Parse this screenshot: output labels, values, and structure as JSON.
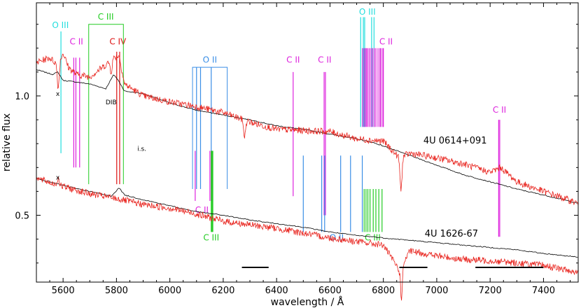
{
  "chart_data": {
    "type": "line",
    "xlabel": "wavelength / Å",
    "ylabel": "relative flux",
    "xlim": [
      5500,
      7530
    ],
    "ylim": [
      0.22,
      1.39
    ],
    "xticks": [
      5600,
      5800,
      6000,
      6200,
      6400,
      6600,
      6800,
      7000,
      7200,
      7400
    ],
    "yticks": [
      0.5,
      1.0
    ],
    "ytick_labels": [
      "0.5",
      "1.0"
    ],
    "grid": false,
    "colors": {
      "data": "#e8221c",
      "model": "#000000",
      "O II": "#3a8ee6",
      "C II": "#dd22dd",
      "C III": "#22cc22",
      "O III": "#22dddd",
      "C IV": "#dd1111"
    },
    "series": [
      {
        "name": "4U 0614+091",
        "kind": "model",
        "x": [
          5500,
          5560,
          5580,
          5600,
          5650,
          5700,
          5760,
          5790,
          5810,
          5830,
          5900,
          6000,
          6100,
          6200,
          6300,
          6400,
          6500,
          6600,
          6700,
          6760,
          6800,
          6900,
          7000,
          7100,
          7200,
          7300,
          7400,
          7530
        ],
        "y": [
          1.11,
          1.09,
          1.1,
          1.065,
          1.058,
          1.05,
          1.03,
          1.09,
          1.06,
          1.02,
          1.01,
          0.97,
          0.94,
          0.92,
          0.9,
          0.875,
          0.86,
          0.84,
          0.82,
          0.805,
          0.79,
          0.75,
          0.71,
          0.67,
          0.64,
          0.61,
          0.585,
          0.55
        ]
      },
      {
        "name": "4U 0614+091",
        "kind": "observed",
        "x": [
          5500,
          5550,
          5580,
          5600,
          5620,
          5650,
          5700,
          5760,
          5790,
          5810,
          5830,
          5900,
          6000,
          6100,
          6200,
          6300,
          6400,
          6500,
          6600,
          6700,
          6800,
          6860,
          6900,
          7000,
          7100,
          7200,
          7240,
          7300,
          7400,
          7530
        ],
        "y": [
          1.14,
          1.16,
          1.13,
          1.18,
          1.12,
          1.09,
          1.08,
          1.13,
          1.16,
          1.17,
          1.05,
          1.0,
          0.975,
          0.955,
          0.93,
          0.89,
          0.86,
          0.855,
          0.85,
          0.82,
          0.81,
          0.74,
          0.76,
          0.74,
          0.715,
          0.68,
          0.7,
          0.64,
          0.6,
          0.55
        ]
      },
      {
        "name": "4U 1626-67",
        "kind": "model",
        "x": [
          5500,
          5600,
          5700,
          5780,
          5810,
          5830,
          5900,
          6000,
          6100,
          6200,
          6300,
          6400,
          6500,
          6600,
          6700,
          6760,
          6800,
          6900,
          7000,
          7100,
          7200,
          7300,
          7400,
          7530
        ],
        "y": [
          0.655,
          0.625,
          0.6,
          0.58,
          0.615,
          0.585,
          0.565,
          0.54,
          0.515,
          0.5,
          0.48,
          0.465,
          0.45,
          0.43,
          0.415,
          0.41,
          0.405,
          0.395,
          0.385,
          0.375,
          0.365,
          0.355,
          0.34,
          0.325
        ]
      },
      {
        "name": "4U 1626-67",
        "kind": "observed",
        "x": [
          5500,
          5600,
          5700,
          5800,
          5900,
          6000,
          6100,
          6200,
          6300,
          6400,
          6500,
          6600,
          6700,
          6800,
          6860,
          6900,
          7000,
          7100,
          7200,
          7300,
          7400,
          7530
        ],
        "y": [
          0.655,
          0.62,
          0.59,
          0.57,
          0.545,
          0.53,
          0.505,
          0.475,
          0.46,
          0.445,
          0.425,
          0.405,
          0.39,
          0.375,
          0.27,
          0.35,
          0.33,
          0.315,
          0.31,
          0.3,
          0.29,
          0.26
        ]
      }
    ],
    "features": [
      {
        "x": 5890,
        "y": 0.81,
        "depth": 0.13
      },
      {
        "x": 5780,
        "y": 1.04,
        "depth": 0.05
      },
      {
        "x": 5582,
        "y": 1.11,
        "depth": 0.1
      },
      {
        "x": 6280,
        "y": 0.85,
        "depth": 0.07
      },
      {
        "x": 6866,
        "y": 0.77,
        "depth": 0.14
      },
      {
        "x": 6868,
        "y": 0.4,
        "depth": 0.13
      },
      {
        "x": 5582,
        "y": 0.67,
        "depth": -0.03
      }
    ],
    "line_groups": [
      {
        "name": "O III",
        "color": "#22dddd",
        "lines": [
          5592
        ],
        "y_top": 1.27,
        "y_bottom": 0.76,
        "label_x": 5590,
        "label_y": 1.285
      },
      {
        "name": "C II",
        "color": "#dd22dd",
        "lines": [
          5640,
          5648,
          5662
        ],
        "y_top": 1.16,
        "y_bottom": 0.7,
        "label_x": 5650,
        "label_y": 1.215
      },
      {
        "name": "C IV",
        "color": "#dd1111",
        "lines": [
          5801,
          5812
        ],
        "y_top": 1.185,
        "y_bottom": 0.63,
        "label_x": 5805,
        "label_y": 1.215
      },
      {
        "name": "C III",
        "color": "#22cc22",
        "lines": [
          5696,
          5826
        ],
        "y_top": 1.3,
        "y_bottom": 0.63,
        "label_x": 5760,
        "label_y": 1.32,
        "box": true
      },
      {
        "name": "O II",
        "color": "#3a8ee6",
        "lines": [
          6085,
          6100,
          6115,
          6155,
          6215
        ],
        "y_top": 1.12,
        "y_bottom": 0.61,
        "label_x": 6150,
        "label_y": 1.14,
        "box": true
      },
      {
        "name": "C II",
        "color": "#dd22dd",
        "lines": [
          6095,
          6150,
          6155
        ],
        "y_top": 0.77,
        "y_bottom": 0.56,
        "label_x": 6120,
        "label_y": 0.51
      },
      {
        "name": "C III",
        "color": "#22cc22",
        "lines": [
          6155,
          6158,
          6161
        ],
        "y_top": 0.77,
        "y_bottom": 0.43,
        "label_x": 6155,
        "label_y": 0.395
      },
      {
        "name": "C II",
        "color": "#dd22dd",
        "lines": [
          6462
        ],
        "y_top": 1.1,
        "y_bottom": 0.58,
        "label_x": 6462,
        "label_y": 1.14
      },
      {
        "name": "C II",
        "color": "#dd22dd",
        "lines": [
          6578,
          6583
        ],
        "y_top": 1.1,
        "y_bottom": 0.5,
        "label_x": 6580,
        "label_y": 1.14
      },
      {
        "name": "O II",
        "color": "#3a8ee6",
        "lines": [
          6500,
          6569,
          6580,
          6640,
          6677,
          6721
        ],
        "y_top": 0.75,
        "y_bottom": 0.43,
        "label_x": 6625,
        "label_y": 0.395
      },
      {
        "name": "O III",
        "color": "#22dddd",
        "lines": [
          6715,
          6725,
          6730,
          6756,
          6765
        ],
        "y_top": 1.33,
        "y_bottom": 0.87,
        "label_x": 6740,
        "label_y": 1.34
      },
      {
        "name": "C II",
        "color": "#dd22dd",
        "lines": [
          6722,
          6728,
          6733,
          6737,
          6742,
          6748,
          6754,
          6760,
          6766,
          6772,
          6780,
          6787,
          6791,
          6798,
          6800
        ],
        "y_top": 1.2,
        "y_bottom": 0.87,
        "label_x": 6810,
        "label_y": 1.215
      },
      {
        "name": "C III",
        "color": "#22cc22",
        "lines": [
          6728,
          6735,
          6742,
          6750,
          6762,
          6772,
          6783,
          6795
        ],
        "y_top": 0.61,
        "y_bottom": 0.43,
        "label_x": 6760,
        "label_y": 0.395
      },
      {
        "name": "C II",
        "color": "#dd22dd",
        "lines": [
          7232,
          7236
        ],
        "y_top": 0.9,
        "y_bottom": 0.41,
        "label_x": 7235,
        "label_y": 0.93
      }
    ],
    "bars": [
      [
        6270,
        6370
      ],
      [
        6860,
        6965
      ],
      [
        7145,
        7400
      ]
    ],
    "labels": [
      {
        "text": "4U 0614+091",
        "x": 6950,
        "y": 0.8
      },
      {
        "text": "4U 1626-67",
        "x": 6955,
        "y": 0.41
      },
      {
        "text": "DIB",
        "x": 5780,
        "y": 0.965
      },
      {
        "text": "i.s.",
        "x": 5895,
        "y": 0.77
      },
      {
        "text": "x",
        "x": 5580,
        "y": 1.0
      },
      {
        "text": "x",
        "x": 5580,
        "y": 0.65
      }
    ]
  }
}
